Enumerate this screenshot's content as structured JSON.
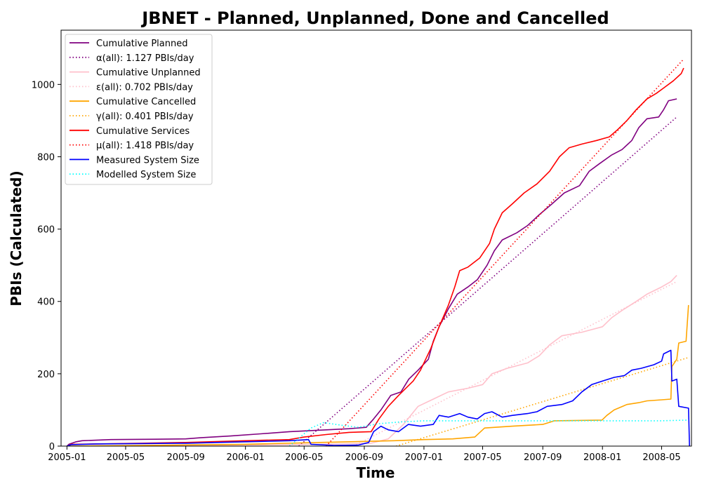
{
  "chart_data": {
    "type": "line",
    "title": "JBNET - Planned, Unplanned, Done  and Cancelled",
    "xlabel": "Time",
    "ylabel": "PBIs (Calculated)",
    "x_axis": {
      "type": "date",
      "range": [
        "2004-12-20",
        "2008-07-01"
      ],
      "ticks": [
        "2005-01-01",
        "2005-05-01",
        "2005-09-01",
        "2006-01-01",
        "2006-05-01",
        "2006-09-01",
        "2007-01-01",
        "2007-05-01",
        "2007-09-01",
        "2008-01-01",
        "2008-05-01"
      ],
      "tick_labels": [
        "2005-01",
        "2005-05",
        "2005-09",
        "2006-01",
        "2006-05",
        "2006-09",
        "2007-01",
        "2007-05",
        "2007-09",
        "2008-01",
        "2008-05"
      ]
    },
    "y_axis": {
      "range": [
        0,
        1150
      ],
      "ticks": [
        0,
        200,
        400,
        600,
        800,
        1000
      ],
      "tick_labels": [
        "0",
        "200",
        "400",
        "600",
        "800",
        "1000"
      ]
    },
    "legend": {
      "placement": "top-left",
      "entries": [
        "Cumulative Planned",
        "α(all): 1.127 PBIs/day",
        "Cumulative Unplanned",
        "ε(all): 0.702 PBIs/day",
        "Cumulative Cancelled",
        "γ(all): 0.401 PBIs/day",
        "Cumulative Services",
        "μ(all): 1.418 PBIs/day",
        "Measured System Size",
        "Modelled System Size"
      ]
    },
    "series": [
      {
        "name": "Cumulative Planned",
        "color": "#800080",
        "style": "solid",
        "points": [
          [
            "2005-01-01",
            0
          ],
          [
            "2005-01-05",
            5
          ],
          [
            "2005-01-20",
            12
          ],
          [
            "2005-02-01",
            15
          ],
          [
            "2005-04-01",
            18
          ],
          [
            "2005-07-01",
            19
          ],
          [
            "2005-09-01",
            20
          ],
          [
            "2005-10-01",
            23
          ],
          [
            "2005-12-01",
            28
          ],
          [
            "2006-02-01",
            34
          ],
          [
            "2006-04-01",
            40
          ],
          [
            "2006-06-01",
            44
          ],
          [
            "2006-08-01",
            48
          ],
          [
            "2006-09-05",
            52
          ],
          [
            "2006-09-20",
            75
          ],
          [
            "2006-10-05",
            100
          ],
          [
            "2006-10-25",
            140
          ],
          [
            "2006-11-15",
            150
          ],
          [
            "2006-12-01",
            185
          ],
          [
            "2006-12-20",
            210
          ],
          [
            "2007-01-10",
            240
          ],
          [
            "2007-01-20",
            290
          ],
          [
            "2007-02-01",
            330
          ],
          [
            "2007-02-20",
            380
          ],
          [
            "2007-03-10",
            420
          ],
          [
            "2007-04-01",
            440
          ],
          [
            "2007-04-20",
            460
          ],
          [
            "2007-05-10",
            500
          ],
          [
            "2007-05-25",
            540
          ],
          [
            "2007-06-10",
            570
          ],
          [
            "2007-07-10",
            590
          ],
          [
            "2007-08-01",
            610
          ],
          [
            "2007-08-25",
            640
          ],
          [
            "2007-09-20",
            670
          ],
          [
            "2007-10-15",
            700
          ],
          [
            "2007-11-15",
            720
          ],
          [
            "2007-12-05",
            760
          ],
          [
            "2007-12-25",
            780
          ],
          [
            "2008-01-20",
            805
          ],
          [
            "2008-02-10",
            820
          ],
          [
            "2008-03-01",
            845
          ],
          [
            "2008-03-15",
            880
          ],
          [
            "2008-04-01",
            905
          ],
          [
            "2008-04-25",
            910
          ],
          [
            "2008-05-05",
            930
          ],
          [
            "2008-05-15",
            955
          ],
          [
            "2008-06-01",
            960
          ]
        ]
      },
      {
        "name": "α(all): 1.127 PBIs/day",
        "color": "#800080",
        "style": "dotted",
        "points": [
          [
            "2006-04-20",
            0
          ],
          [
            "2008-06-01",
            910
          ]
        ]
      },
      {
        "name": "Cumulative Unplanned",
        "color": "#ffc0cb",
        "style": "solid",
        "points": [
          [
            "2005-01-01",
            0
          ],
          [
            "2006-01-01",
            3
          ],
          [
            "2006-06-01",
            5
          ],
          [
            "2006-09-15",
            8
          ],
          [
            "2006-10-20",
            20
          ],
          [
            "2006-11-20",
            60
          ],
          [
            "2006-12-20",
            110
          ],
          [
            "2007-01-20",
            130
          ],
          [
            "2007-02-20",
            150
          ],
          [
            "2007-04-01",
            160
          ],
          [
            "2007-05-01",
            170
          ],
          [
            "2007-05-20",
            200
          ],
          [
            "2007-06-20",
            215
          ],
          [
            "2007-08-01",
            230
          ],
          [
            "2007-08-25",
            250
          ],
          [
            "2007-09-15",
            280
          ],
          [
            "2007-10-10",
            305
          ],
          [
            "2007-11-20",
            315
          ],
          [
            "2008-01-01",
            330
          ],
          [
            "2008-01-20",
            355
          ],
          [
            "2008-02-10",
            375
          ],
          [
            "2008-03-10",
            400
          ],
          [
            "2008-04-01",
            420
          ],
          [
            "2008-05-01",
            440
          ],
          [
            "2008-05-20",
            455
          ],
          [
            "2008-06-01",
            472
          ]
        ]
      },
      {
        "name": "ε(all): 0.702 PBIs/day",
        "color": "#ffc0cb",
        "style": "dotted",
        "points": [
          [
            "2006-08-10",
            0
          ],
          [
            "2008-06-01",
            455
          ]
        ]
      },
      {
        "name": "Cumulative Cancelled",
        "color": "#ffa500",
        "style": "solid",
        "points": [
          [
            "2005-01-01",
            0
          ],
          [
            "2005-06-01",
            2
          ],
          [
            "2006-01-01",
            5
          ],
          [
            "2006-06-01",
            10
          ],
          [
            "2006-11-01",
            15
          ],
          [
            "2007-01-01",
            18
          ],
          [
            "2007-03-01",
            20
          ],
          [
            "2007-04-15",
            25
          ],
          [
            "2007-05-05",
            50
          ],
          [
            "2007-07-01",
            55
          ],
          [
            "2007-09-01",
            60
          ],
          [
            "2007-09-25",
            70
          ],
          [
            "2007-12-31",
            72
          ],
          [
            "2008-01-10",
            85
          ],
          [
            "2008-01-25",
            100
          ],
          [
            "2008-02-20",
            115
          ],
          [
            "2008-03-15",
            120
          ],
          [
            "2008-04-01",
            125
          ],
          [
            "2008-05-01",
            128
          ],
          [
            "2008-05-20",
            130
          ],
          [
            "2008-05-22",
            220
          ],
          [
            "2008-06-01",
            240
          ],
          [
            "2008-06-05",
            285
          ],
          [
            "2008-06-20",
            290
          ],
          [
            "2008-06-25",
            390
          ]
        ]
      },
      {
        "name": "γ(all): 0.401 PBIs/day",
        "color": "#ffa500",
        "style": "dotted",
        "points": [
          [
            "2006-11-05",
            0
          ],
          [
            "2008-06-25",
            245
          ]
        ]
      },
      {
        "name": "Cumulative Services",
        "color": "#ff0000",
        "style": "solid",
        "points": [
          [
            "2005-01-01",
            0
          ],
          [
            "2005-01-10",
            5
          ],
          [
            "2005-06-01",
            8
          ],
          [
            "2005-09-01",
            10
          ],
          [
            "2006-01-01",
            15
          ],
          [
            "2006-04-01",
            18
          ],
          [
            "2006-05-01",
            25
          ],
          [
            "2006-06-15",
            32
          ],
          [
            "2006-08-01",
            38
          ],
          [
            "2006-09-15",
            40
          ],
          [
            "2006-10-01",
            75
          ],
          [
            "2006-10-20",
            110
          ],
          [
            "2006-11-10",
            140
          ],
          [
            "2006-12-10",
            180
          ],
          [
            "2006-12-25",
            210
          ],
          [
            "2007-01-15",
            270
          ],
          [
            "2007-02-01",
            330
          ],
          [
            "2007-02-20",
            390
          ],
          [
            "2007-03-05",
            440
          ],
          [
            "2007-03-15",
            485
          ],
          [
            "2007-04-01",
            495
          ],
          [
            "2007-04-25",
            520
          ],
          [
            "2007-05-15",
            560
          ],
          [
            "2007-05-25",
            600
          ],
          [
            "2007-06-10",
            645
          ],
          [
            "2007-07-01",
            670
          ],
          [
            "2007-07-25",
            700
          ],
          [
            "2007-08-20",
            725
          ],
          [
            "2007-09-15",
            760
          ],
          [
            "2007-10-05",
            800
          ],
          [
            "2007-10-25",
            825
          ],
          [
            "2007-11-20",
            835
          ],
          [
            "2007-12-20",
            845
          ],
          [
            "2008-01-15",
            855
          ],
          [
            "2008-02-01",
            875
          ],
          [
            "2008-02-20",
            900
          ],
          [
            "2008-03-10",
            930
          ],
          [
            "2008-04-01",
            960
          ],
          [
            "2008-04-20",
            975
          ],
          [
            "2008-05-05",
            990
          ],
          [
            "2008-05-25",
            1010
          ],
          [
            "2008-06-10",
            1030
          ],
          [
            "2008-06-15",
            1045
          ]
        ]
      },
      {
        "name": "μ(all): 1.418 PBIs/day",
        "color": "#ff0000",
        "style": "dotted",
        "points": [
          [
            "2006-06-15",
            0
          ],
          [
            "2008-06-15",
            1070
          ]
        ]
      },
      {
        "name": "Measured System Size",
        "color": "#0000ff",
        "style": "solid",
        "points": [
          [
            "2005-01-01",
            0
          ],
          [
            "2005-01-10",
            4
          ],
          [
            "2005-03-01",
            6
          ],
          [
            "2005-06-01",
            7
          ],
          [
            "2005-09-01",
            8
          ],
          [
            "2006-01-01",
            12
          ],
          [
            "2006-04-01",
            15
          ],
          [
            "2006-05-10",
            18
          ],
          [
            "2006-05-15",
            5
          ],
          [
            "2006-07-01",
            2
          ],
          [
            "2006-08-20",
            3
          ],
          [
            "2006-09-10",
            10
          ],
          [
            "2006-09-20",
            40
          ],
          [
            "2006-10-05",
            55
          ],
          [
            "2006-10-20",
            45
          ],
          [
            "2006-11-10",
            40
          ],
          [
            "2006-11-30",
            60
          ],
          [
            "2006-12-25",
            55
          ],
          [
            "2007-01-20",
            60
          ],
          [
            "2007-02-01",
            85
          ],
          [
            "2007-02-20",
            80
          ],
          [
            "2007-03-15",
            90
          ],
          [
            "2007-04-01",
            80
          ],
          [
            "2007-04-20",
            75
          ],
          [
            "2007-05-05",
            90
          ],
          [
            "2007-05-20",
            95
          ],
          [
            "2007-06-10",
            80
          ],
          [
            "2007-07-01",
            85
          ],
          [
            "2007-08-01",
            90
          ],
          [
            "2007-08-20",
            95
          ],
          [
            "2007-09-10",
            110
          ],
          [
            "2007-10-10",
            115
          ],
          [
            "2007-11-01",
            125
          ],
          [
            "2007-11-20",
            150
          ],
          [
            "2007-12-10",
            170
          ],
          [
            "2008-01-01",
            180
          ],
          [
            "2008-01-25",
            190
          ],
          [
            "2008-02-15",
            195
          ],
          [
            "2008-03-01",
            210
          ],
          [
            "2008-03-20",
            215
          ],
          [
            "2008-04-15",
            225
          ],
          [
            "2008-05-01",
            235
          ],
          [
            "2008-05-05",
            255
          ],
          [
            "2008-05-20",
            265
          ],
          [
            "2008-05-22",
            180
          ],
          [
            "2008-06-01",
            185
          ],
          [
            "2008-06-05",
            110
          ],
          [
            "2008-06-25",
            105
          ],
          [
            "2008-06-27",
            0
          ]
        ]
      },
      {
        "name": "Modelled System Size",
        "color": "#00ffff",
        "style": "dotted",
        "points": [
          [
            "2006-04-01",
            0
          ],
          [
            "2006-05-15",
            50
          ],
          [
            "2006-06-10",
            65
          ],
          [
            "2006-07-15",
            58
          ],
          [
            "2006-08-20",
            52
          ],
          [
            "2006-10-01",
            62
          ],
          [
            "2006-11-15",
            67
          ],
          [
            "2007-01-01",
            70
          ],
          [
            "2007-05-01",
            70
          ],
          [
            "2007-09-01",
            70
          ],
          [
            "2008-01-01",
            70
          ],
          [
            "2008-05-01",
            70
          ],
          [
            "2008-06-25",
            72
          ]
        ]
      }
    ]
  }
}
